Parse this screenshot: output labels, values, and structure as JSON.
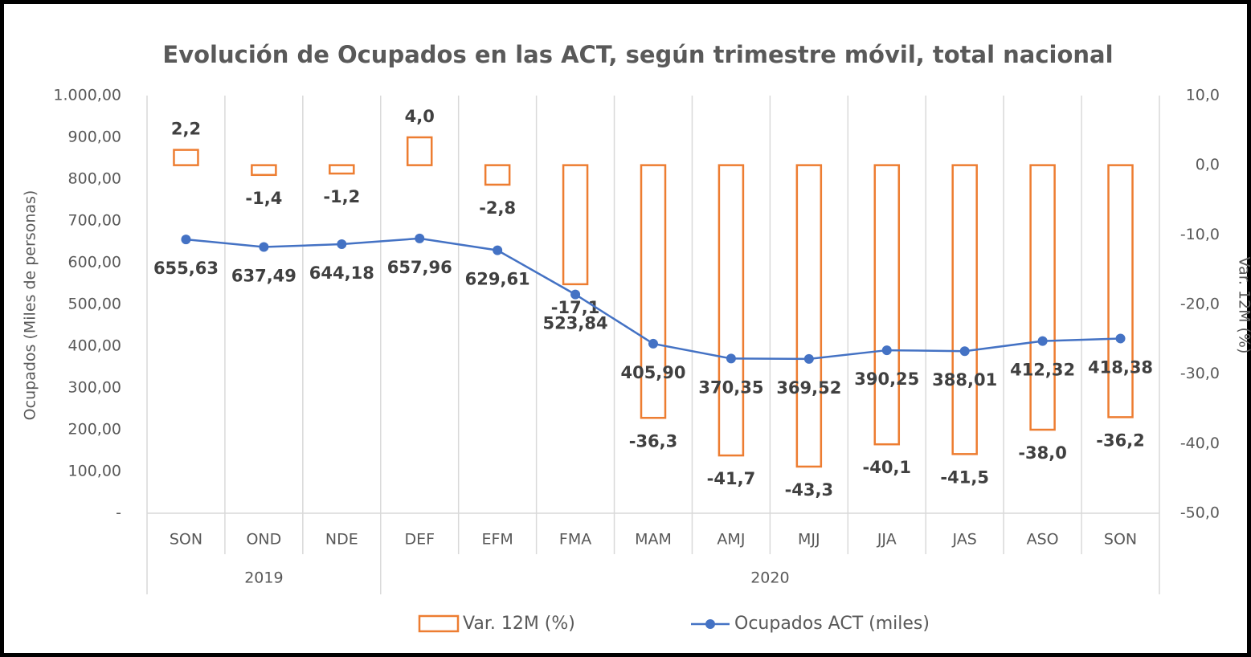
{
  "chart_data": {
    "type": "bar-line",
    "title": "Evolución de Ocupados en las ACT, según trimestre móvil, total nacional",
    "y_label": "Ocupados (Miles de personas)",
    "y2_label": "Var. 12M (%)",
    "categories": [
      "SON",
      "OND",
      "NDE",
      "DEF",
      "EFM",
      "FMA",
      "MAM",
      "AMJ",
      "MJJ",
      "JJA",
      "JAS",
      "ASO",
      "SON"
    ],
    "category_groups": [
      {
        "label": "2019",
        "size": 3
      },
      {
        "label": "2020",
        "size": 10
      }
    ],
    "series": [
      {
        "name": "Var. 12M (%)",
        "type": "bar",
        "axis": "y2",
        "color": "#ed7d31",
        "values": [
          2.2,
          -1.4,
          -1.2,
          4.0,
          -2.8,
          -17.1,
          -36.3,
          -41.7,
          -43.3,
          -40.1,
          -41.5,
          -38.0,
          -36.2
        ],
        "value_labels": [
          "2,2",
          "-1,4",
          "-1,2",
          "4,0",
          "-2,8",
          "-17,1",
          "-36,3",
          "-41,7",
          "-43,3",
          "-40,1",
          "-41,5",
          "-38,0",
          "-36,2"
        ]
      },
      {
        "name": "Ocupados ACT (miles)",
        "type": "line",
        "axis": "y",
        "color": "#4472c4",
        "values": [
          655.63,
          637.49,
          644.18,
          657.96,
          629.61,
          523.84,
          405.9,
          370.35,
          369.52,
          390.25,
          388.01,
          412.32,
          418.38
        ],
        "value_labels": [
          "655,63",
          "637,49",
          "644,18",
          "657,96",
          "629,61",
          "523,84",
          "405,90",
          "370,35",
          "369,52",
          "390,25",
          "388,01",
          "412,32",
          "418,38"
        ]
      }
    ],
    "ylim": [
      0,
      1000
    ],
    "yticks": [
      {
        "value": 0,
        "label": "-"
      },
      {
        "value": 100,
        "label": "100,00"
      },
      {
        "value": 200,
        "label": "200,00"
      },
      {
        "value": 300,
        "label": "300,00"
      },
      {
        "value": 400,
        "label": "400,00"
      },
      {
        "value": 500,
        "label": "500,00"
      },
      {
        "value": 600,
        "label": "600,00"
      },
      {
        "value": 700,
        "label": "700,00"
      },
      {
        "value": 800,
        "label": "800,00"
      },
      {
        "value": 900,
        "label": "900,00"
      },
      {
        "value": 1000,
        "label": "1.000,00"
      }
    ],
    "y2lim": [
      -50,
      10
    ],
    "y2ticks": [
      {
        "value": -50,
        "label": "-50,0"
      },
      {
        "value": -40,
        "label": "-40,0"
      },
      {
        "value": -30,
        "label": "-30,0"
      },
      {
        "value": -20,
        "label": "-20,0"
      },
      {
        "value": -10,
        "label": "-10,0"
      },
      {
        "value": 0,
        "label": "0,0"
      },
      {
        "value": 10,
        "label": "10,0"
      }
    ],
    "legend": "bottom"
  }
}
